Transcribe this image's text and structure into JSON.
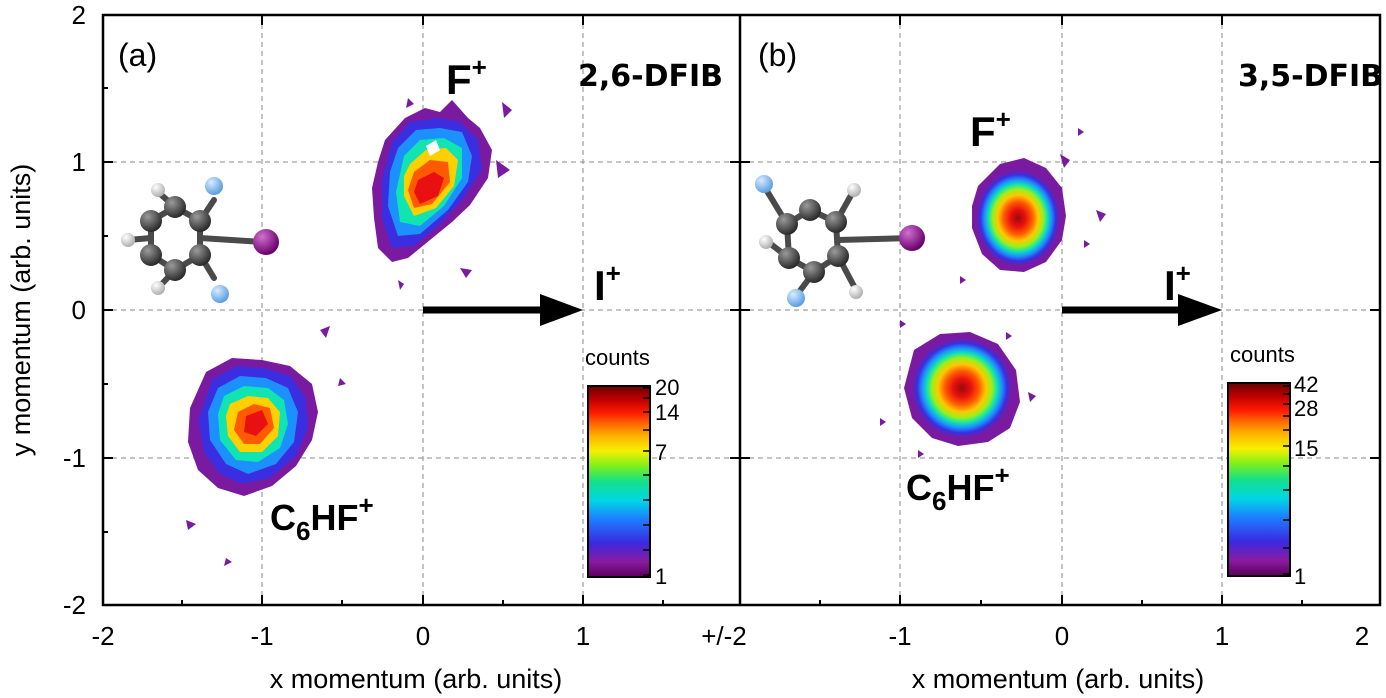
{
  "axes": {
    "x_title": "x momentum (arb. units)",
    "y_title": "y momentum (arb. units)",
    "x_ticks_left": [
      "-2",
      "-1",
      "0",
      "1",
      "+/-2"
    ],
    "x_ticks_right": [
      "-1",
      "0",
      "1",
      "2"
    ],
    "y_ticks": [
      "2",
      "1",
      "0",
      "-1",
      "-2"
    ]
  },
  "panels": [
    {
      "tag": "(a)",
      "molecule": "2,6-DFIB",
      "fragment_top": {
        "base": "F",
        "charge": "+"
      },
      "fragment_right": {
        "base": "I",
        "charge": "+"
      },
      "fragment_bottom": {
        "base": "C",
        "sub": "6",
        "rest": "HF",
        "charge": "+"
      },
      "colorbar": {
        "title": "counts",
        "labels": [
          "20",
          "14",
          "7",
          "1"
        ]
      }
    },
    {
      "tag": "(b)",
      "molecule": "3,5-DFIB",
      "fragment_top": {
        "base": "F",
        "charge": "+"
      },
      "fragment_right": {
        "base": "I",
        "charge": "+"
      },
      "fragment_bottom": {
        "base": "C",
        "sub": "6",
        "rest": "HF",
        "charge": "+"
      },
      "colorbar": {
        "title": "counts",
        "labels": [
          "42",
          "28",
          "15",
          "1"
        ]
      }
    }
  ],
  "chart_data": [
    {
      "type": "heatmap",
      "panel": "(a)",
      "xlabel": "x momentum (arb. units)",
      "ylabel": "y momentum (arb. units)",
      "xlim": [
        -2,
        2
      ],
      "ylim": [
        -2,
        2
      ],
      "grid": true,
      "colorbar": {
        "title": "counts",
        "scale": "log",
        "range": [
          1,
          20
        ],
        "tick_labels": [
          "20",
          "14",
          "7",
          "1"
        ]
      },
      "clusters": [
        {
          "label": "F+",
          "center": [
            0.05,
            0.75
          ],
          "spread": [
            0.28,
            0.42
          ],
          "peak_counts": 20
        },
        {
          "label": "C6HF+",
          "center": [
            -0.95,
            -0.75
          ],
          "spread": [
            0.33,
            0.38
          ],
          "peak_counts": 14
        }
      ],
      "annotations": [
        "(a)",
        "2,6-DFIB",
        "F+",
        "I+",
        "C6HF+"
      ],
      "arrow": {
        "from": [
          0,
          0
        ],
        "to": [
          1,
          0
        ],
        "label": "I+"
      }
    },
    {
      "type": "heatmap",
      "panel": "(b)",
      "xlabel": "x momentum (arb. units)",
      "ylabel": "y momentum (arb. units)",
      "xlim": [
        -2,
        2
      ],
      "ylim": [
        -2,
        2
      ],
      "grid": true,
      "colorbar": {
        "title": "counts",
        "scale": "log",
        "range": [
          1,
          42
        ],
        "tick_labels": [
          "42",
          "28",
          "15",
          "1"
        ]
      },
      "clusters": [
        {
          "label": "F+",
          "center": [
            -0.3,
            0.58
          ],
          "spread": [
            0.24,
            0.24
          ],
          "peak_counts": 42
        },
        {
          "label": "C6HF+",
          "center": [
            -0.6,
            -0.52
          ],
          "spread": [
            0.26,
            0.24
          ],
          "peak_counts": 42
        }
      ],
      "annotations": [
        "(b)",
        "3,5-DFIB",
        "F+",
        "I+",
        "C6HF+"
      ],
      "arrow": {
        "from": [
          0,
          0
        ],
        "to": [
          1,
          0
        ],
        "label": "I+"
      }
    }
  ]
}
